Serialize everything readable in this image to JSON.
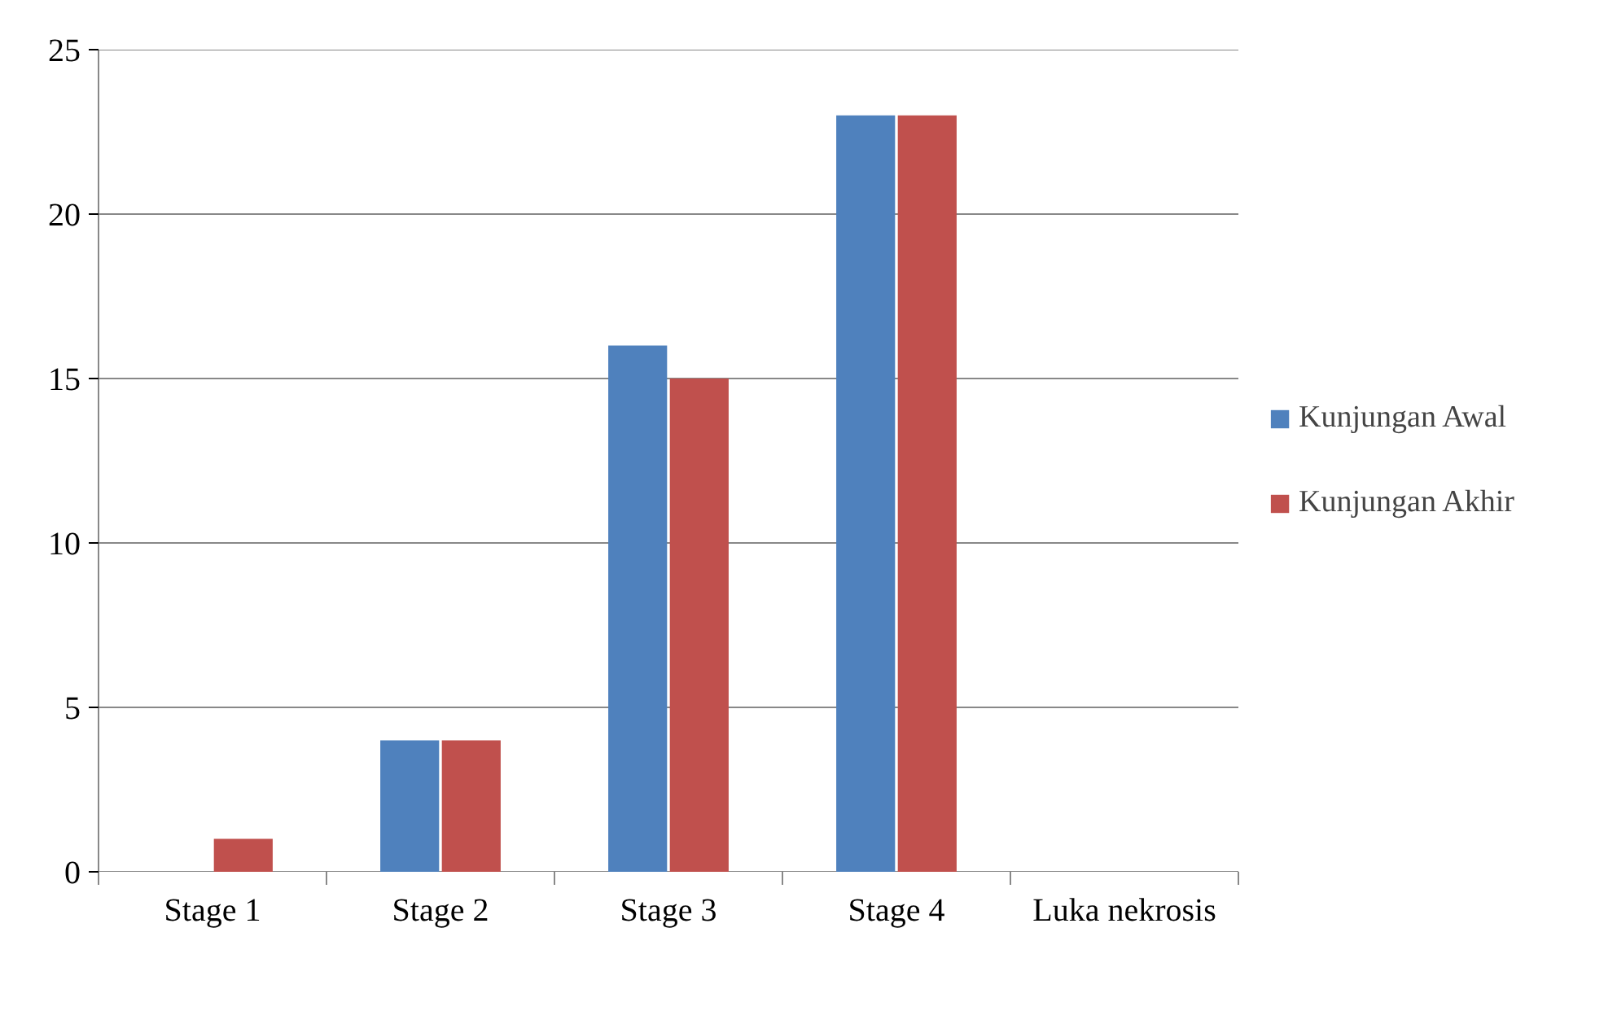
{
  "chart_data": {
    "type": "bar",
    "categories": [
      "Stage 1",
      "Stage 2",
      "Stage 3",
      "Stage 4",
      "Luka nekrosis"
    ],
    "series": [
      {
        "name": "Kunjungan Awal",
        "color": "#4f81bd",
        "values": [
          0,
          4,
          16,
          23,
          0
        ]
      },
      {
        "name": "Kunjungan Akhir",
        "color": "#c0504d",
        "values": [
          1,
          4,
          15,
          23,
          0
        ]
      }
    ],
    "ylim": [
      0,
      25
    ],
    "yticks": [
      0,
      5,
      10,
      15,
      20,
      25
    ],
    "grid": "y",
    "legend": "right"
  }
}
